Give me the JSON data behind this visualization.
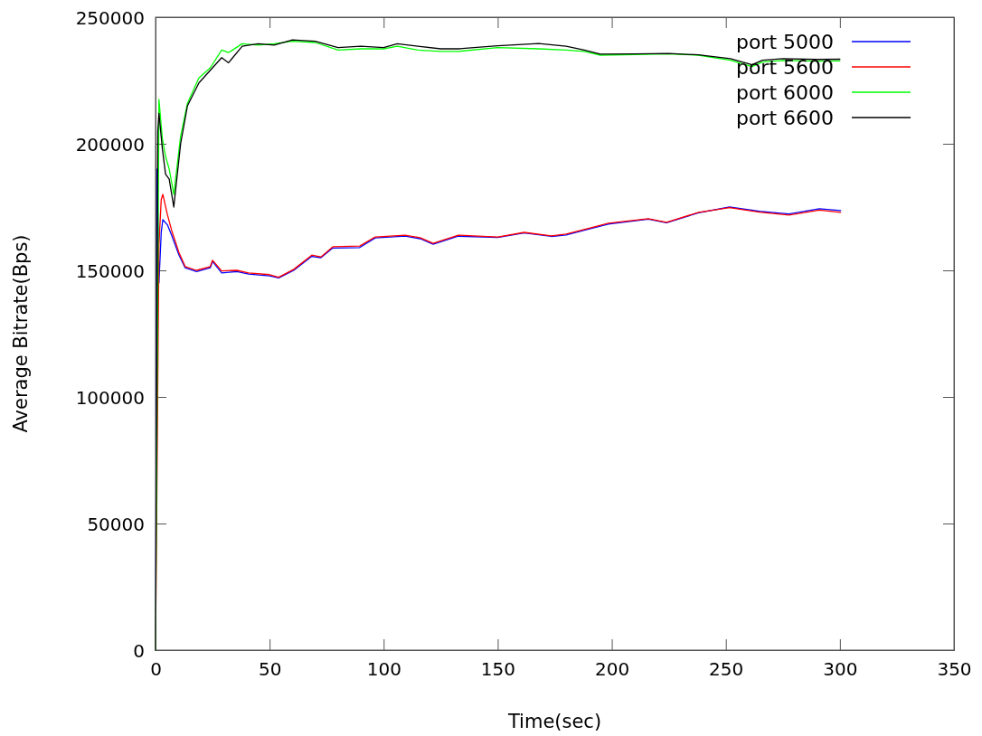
{
  "chart_data": {
    "type": "line",
    "xlabel": "Time(sec)",
    "ylabel": "Average Bitrate(Bps)",
    "xlim": [
      0,
      350
    ],
    "xticks": [
      0,
      50,
      100,
      150,
      200,
      250,
      300,
      350
    ],
    "ylim": [
      0,
      250000
    ],
    "yticks": [
      0,
      50000,
      100000,
      150000,
      200000,
      250000
    ],
    "legend": "top right",
    "grid": false,
    "marker": "none",
    "line_style": "solid",
    "series": [
      {
        "name": "port 5000",
        "color": "#0000ff",
        "x": [
          0,
          0.7,
          1.5,
          2.5,
          3.2,
          5.2,
          7,
          10.3,
          13,
          18,
          24,
          25,
          29,
          35.7,
          40.8,
          50,
          54,
          60.6,
          68.5,
          72.5,
          77.7,
          89.5,
          96.3,
          109.4,
          116,
          121.7,
          132.7,
          150,
          161.6,
          173.5,
          180,
          198.5,
          216,
          224,
          238,
          251.6,
          264.7,
          277.7,
          291,
          300.3
        ],
        "values": [
          0,
          190000,
          145000,
          165000,
          170000,
          168000,
          164000,
          156000,
          151000,
          149500,
          151000,
          153500,
          149000,
          149500,
          148500,
          147800,
          147000,
          150000,
          155500,
          155000,
          158800,
          159000,
          162800,
          163500,
          162500,
          160300,
          163500,
          163000,
          164800,
          163400,
          164000,
          168300,
          170200,
          168800,
          172700,
          175000,
          173300,
          172300,
          174300,
          173600
        ]
      },
      {
        "name": "port 5600",
        "color": "#ff0000",
        "x": [
          0,
          1.5,
          2.5,
          3.2,
          5.2,
          7,
          10.3,
          13,
          18,
          24,
          25,
          29,
          35.7,
          40.8,
          50,
          54,
          60.6,
          68.5,
          72.5,
          77.7,
          89.5,
          96.3,
          109.4,
          116,
          121.7,
          132.7,
          150,
          161.6,
          173.5,
          180,
          198.5,
          216,
          224,
          238,
          251.6,
          264.7,
          277.7,
          291,
          300.3
        ],
        "values": [
          0,
          160000,
          178000,
          180000,
          172000,
          166000,
          157000,
          151500,
          150000,
          151500,
          154000,
          149800,
          150000,
          149000,
          148300,
          147300,
          150400,
          156000,
          155300,
          159300,
          159600,
          163200,
          163900,
          162900,
          160700,
          163900,
          163200,
          165000,
          163600,
          164300,
          168600,
          170400,
          169000,
          172900,
          174800,
          173000,
          171800,
          173800,
          172900
        ]
      },
      {
        "name": "port 6000",
        "color": "#00ff00",
        "x": [
          0,
          1.5,
          3,
          4.4,
          6,
          8,
          11,
          14,
          19,
          24,
          29,
          32,
          38,
          45,
          52,
          60,
          70,
          80,
          90,
          100,
          106,
          115,
          125,
          133,
          150,
          168,
          180,
          188,
          195,
          210,
          225,
          238,
          252,
          261.5,
          266,
          275,
          290,
          300
        ],
        "values": [
          0,
          217500,
          202000,
          195000,
          190000,
          180000,
          203000,
          216000,
          226000,
          230000,
          237000,
          236000,
          239500,
          239000,
          239500,
          240500,
          240000,
          237000,
          237500,
          237500,
          238500,
          237000,
          236500,
          236500,
          238000,
          237500,
          237000,
          236500,
          235000,
          235200,
          235500,
          235000,
          233000,
          230500,
          232300,
          232900,
          232600,
          232700
        ]
      },
      {
        "name": "port 6600",
        "color": "#000000",
        "x": [
          0,
          1,
          1.5,
          3,
          4.4,
          6,
          8,
          11,
          14,
          19,
          24,
          29,
          32,
          38,
          45,
          52,
          60,
          70,
          80,
          90,
          100,
          106,
          115,
          125,
          133,
          150,
          168,
          180,
          188,
          195,
          210,
          225,
          238,
          252,
          261.5,
          266,
          275,
          290,
          300
        ],
        "values": [
          0,
          205000,
          212000,
          198000,
          188000,
          186000,
          175000,
          200000,
          215000,
          224000,
          229000,
          234000,
          232000,
          238500,
          239500,
          239000,
          241000,
          240500,
          238000,
          238500,
          238000,
          239500,
          238500,
          237500,
          237500,
          238700,
          239600,
          238500,
          237000,
          235400,
          235500,
          235700,
          235100,
          233600,
          231200,
          233000,
          233600,
          233300,
          233400
        ]
      }
    ]
  }
}
